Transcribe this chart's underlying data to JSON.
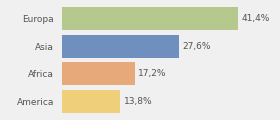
{
  "categories": [
    "Europa",
    "Asia",
    "Africa",
    "America"
  ],
  "values": [
    41.4,
    27.6,
    17.2,
    13.8
  ],
  "labels": [
    "41,4%",
    "27,6%",
    "17,2%",
    "13,8%"
  ],
  "bar_colors": [
    "#b5c98e",
    "#6f8fbf",
    "#e8a97a",
    "#f0cf7a"
  ],
  "background_color": "#f0f0f0",
  "xlim": [
    0,
    50
  ],
  "bar_height": 0.82,
  "label_fontsize": 6.5,
  "category_fontsize": 6.5
}
